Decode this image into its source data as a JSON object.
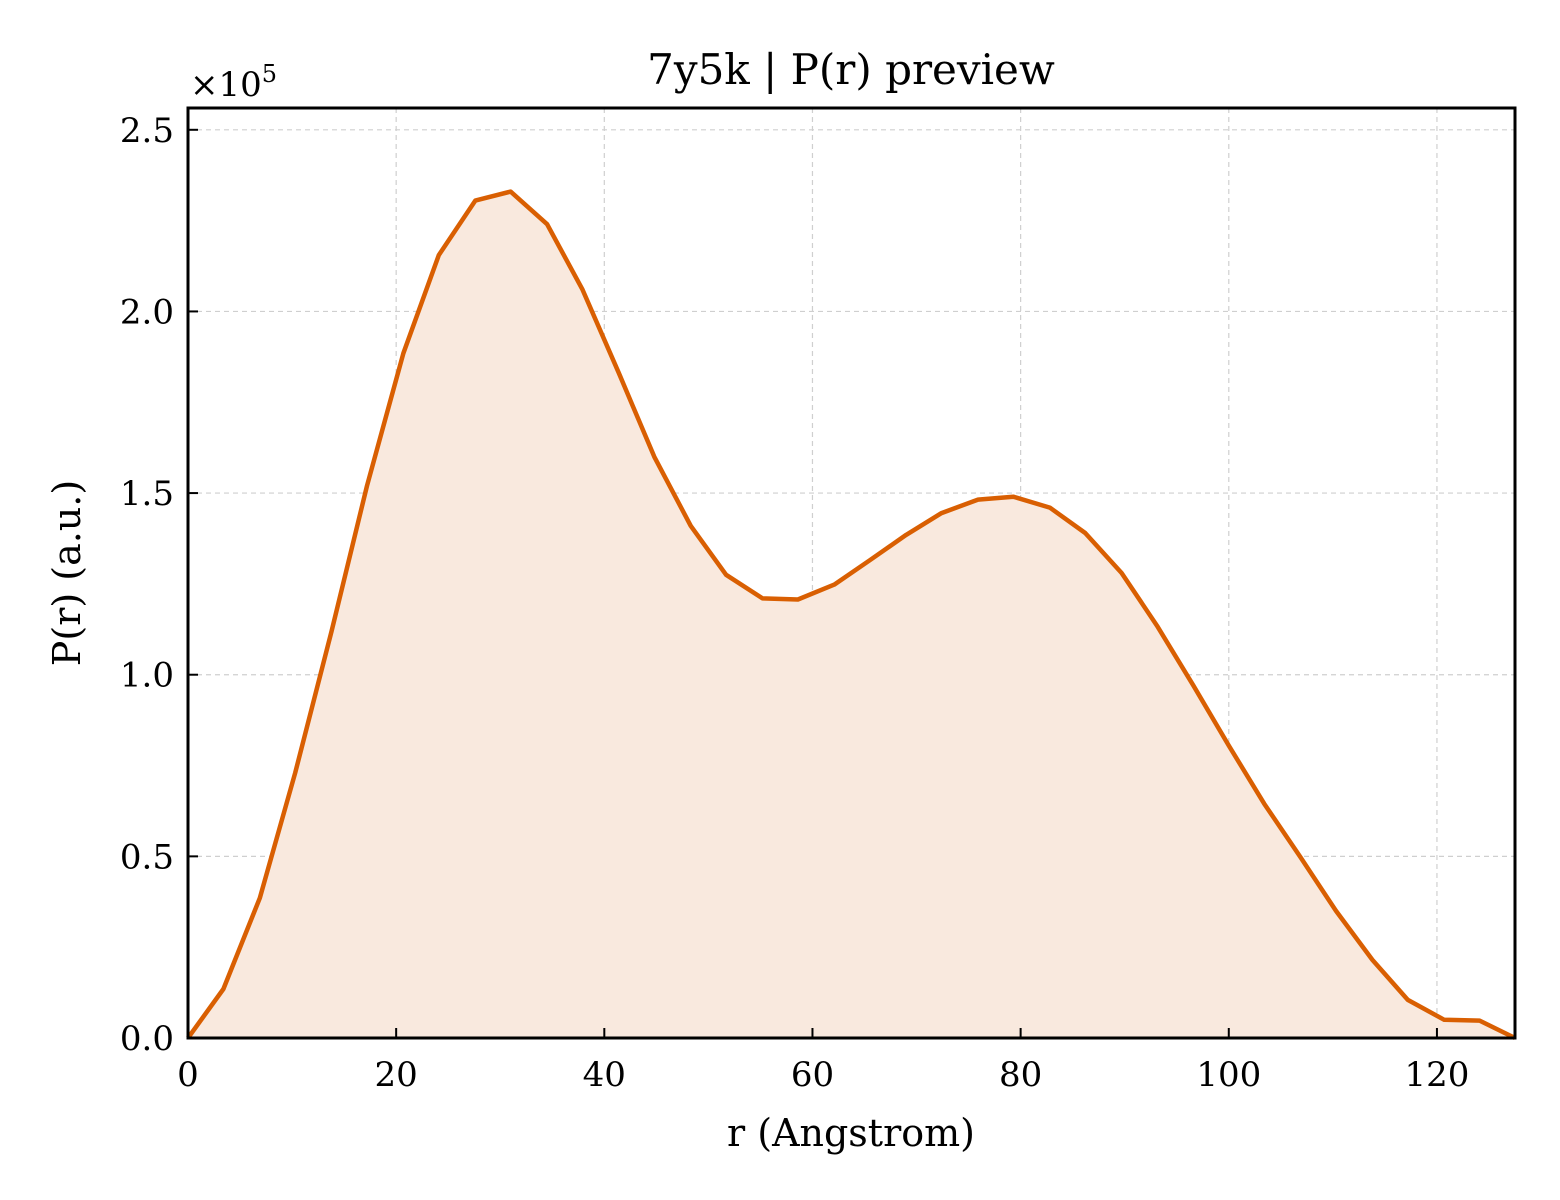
{
  "chart_data": {
    "type": "area",
    "title": "7y5k | P(r) preview",
    "xlabel": "r (Angstrom)",
    "ylabel": "P(r) (a.u.)",
    "y_offset_label": "×10",
    "y_offset_exponent": "5",
    "xlim": [
      0,
      127.5
    ],
    "ylim": [
      0,
      2.56
    ],
    "x_ticks": [
      0,
      20,
      40,
      60,
      80,
      100,
      120
    ],
    "x_tick_labels": [
      "0",
      "20",
      "40",
      "60",
      "80",
      "100",
      "120"
    ],
    "y_ticks": [
      0,
      0.5,
      1.0,
      1.5,
      2.0,
      2.5
    ],
    "y_tick_labels": [
      "0.0",
      "0.5",
      "1.0",
      "1.5",
      "2.0",
      "2.5"
    ],
    "grid": true,
    "line_color": "#d95f02",
    "fill_color": "#f9e9de",
    "series": [
      {
        "x": [
          0,
          3.4,
          6.9,
          10.3,
          13.8,
          17.2,
          20.7,
          24.1,
          27.6,
          31.0,
          34.5,
          37.9,
          41.4,
          44.8,
          48.3,
          51.7,
          55.2,
          58.6,
          62.1,
          65.5,
          69.0,
          72.4,
          75.9,
          79.3,
          82.8,
          86.2,
          89.7,
          93.1,
          96.6,
          100.0,
          103.4,
          106.9,
          110.3,
          113.8,
          117.2,
          120.7,
          124.1,
          127.5
        ],
        "values": [
          0.0,
          0.135,
          0.385,
          0.73,
          1.12,
          1.52,
          1.885,
          2.155,
          2.305,
          2.33,
          2.24,
          2.06,
          1.83,
          1.6,
          1.41,
          1.275,
          1.21,
          1.207,
          1.248,
          1.315,
          1.385,
          1.445,
          1.482,
          1.49,
          1.46,
          1.39,
          1.28,
          1.135,
          0.97,
          0.805,
          0.645,
          0.497,
          0.35,
          0.215,
          0.105,
          0.05,
          0.048,
          0.0
        ]
      }
    ]
  }
}
